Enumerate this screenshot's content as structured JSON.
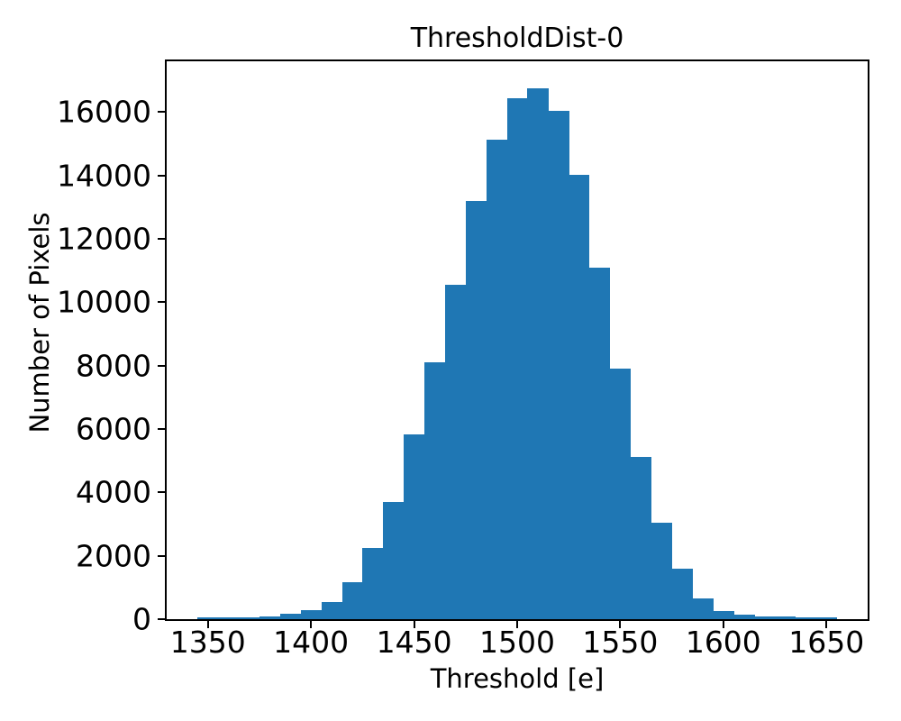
{
  "chart_data": {
    "type": "bar",
    "subtype": "histogram",
    "title": "ThresholdDist-0",
    "xlabel": "Threshold [e]",
    "ylabel": "Number of Pixels",
    "bar_color": "#1f77b4",
    "axis_color": "#000000",
    "background_color": "#ffffff",
    "grid": false,
    "legend": null,
    "xlim": [
      1330,
      1670
    ],
    "ylim": [
      0,
      17600
    ],
    "xticks": [
      1350,
      1400,
      1450,
      1500,
      1550,
      1600,
      1650
    ],
    "yticks": [
      0,
      2000,
      4000,
      6000,
      8000,
      10000,
      12000,
      14000,
      16000
    ],
    "bin_start": 1345,
    "bin_width": 10,
    "counts": [
      60,
      70,
      65,
      75,
      170,
      290,
      550,
      1170,
      2250,
      3700,
      5830,
      8100,
      10540,
      13200,
      15130,
      16440,
      16760,
      16050,
      14030,
      11080,
      7910,
      5120,
      3050,
      1580,
      650,
      270,
      130,
      85,
      90,
      60,
      45
    ]
  }
}
